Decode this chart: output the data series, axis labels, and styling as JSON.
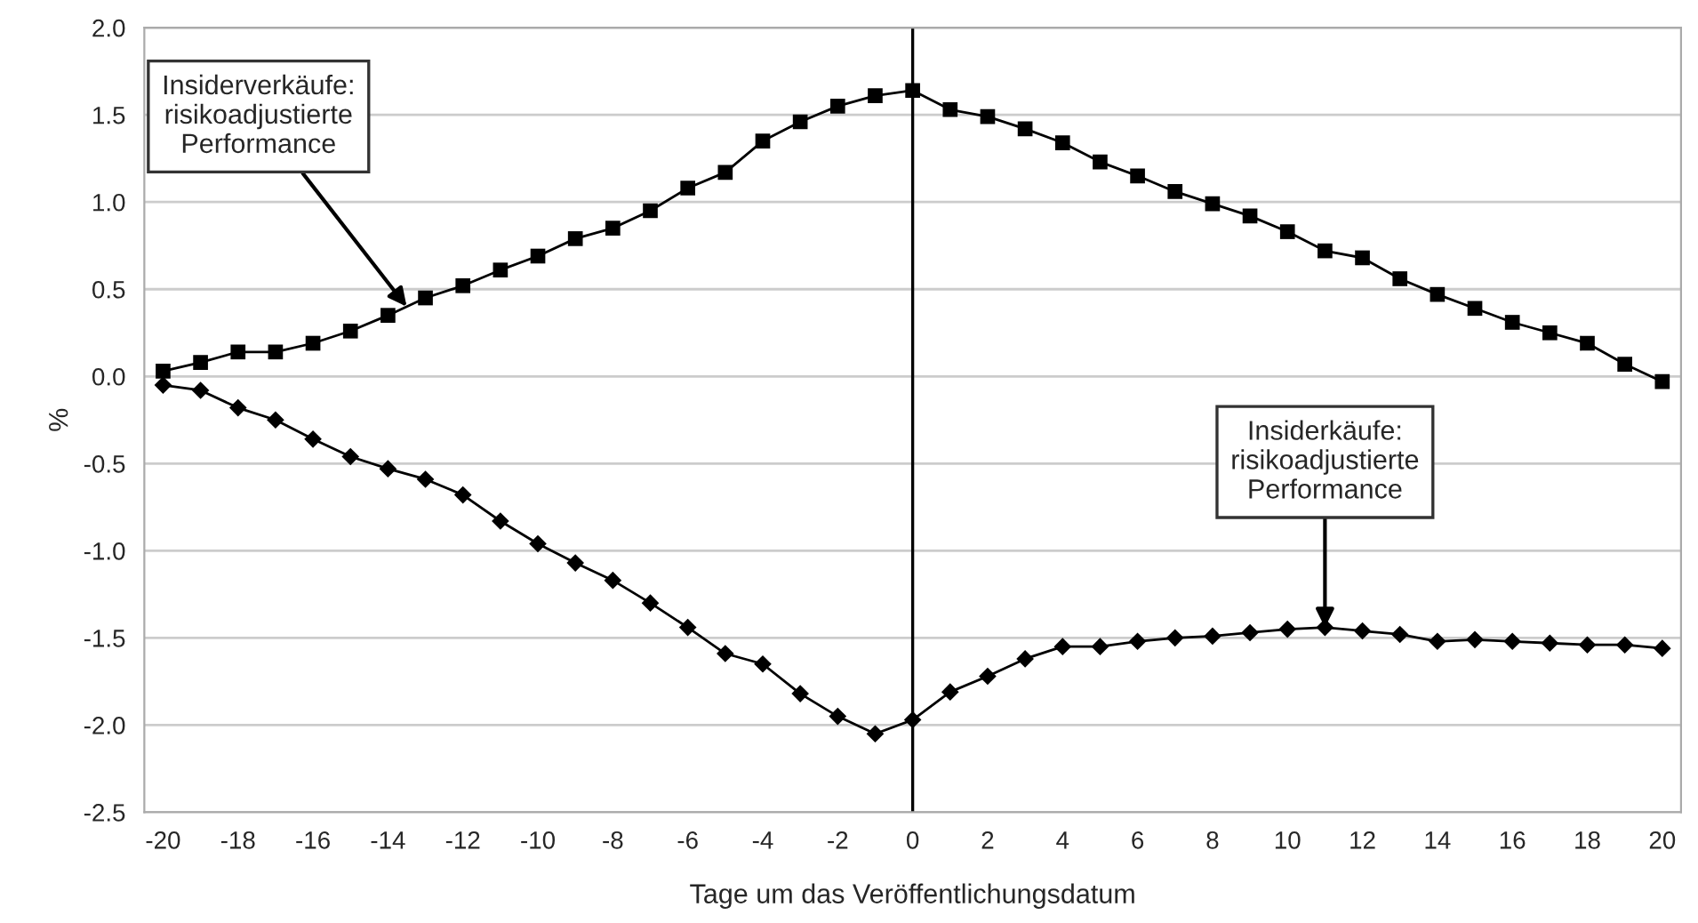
{
  "chart_data": {
    "type": "line",
    "xlabel": "Tage um das Veröffentlichungsdatum",
    "ylabel": "%",
    "x": [
      -20,
      -19,
      -18,
      -17,
      -16,
      -15,
      -14,
      -13,
      -12,
      -11,
      -10,
      -9,
      -8,
      -7,
      -6,
      -5,
      -4,
      -3,
      -2,
      -1,
      0,
      1,
      2,
      3,
      4,
      5,
      6,
      7,
      8,
      9,
      10,
      11,
      12,
      13,
      14,
      15,
      16,
      17,
      18,
      19,
      20
    ],
    "series": [
      {
        "color": "#000000",
        "marker": "square",
        "values": [
          0.03,
          0.08,
          0.14,
          0.14,
          0.19,
          0.26,
          0.35,
          0.45,
          0.52,
          0.61,
          0.69,
          0.79,
          0.85,
          0.95,
          1.08,
          1.17,
          1.35,
          1.46,
          1.55,
          1.61,
          1.64,
          1.53,
          1.49,
          1.42,
          1.34,
          1.23,
          1.15,
          1.06,
          0.99,
          0.92,
          0.83,
          0.72,
          0.68,
          0.56,
          0.47,
          0.39,
          0.31,
          0.25,
          0.19,
          0.07,
          -0.03
        ]
      },
      {
        "color": "#000000",
        "marker": "diamond",
        "values": [
          -0.05,
          -0.08,
          -0.18,
          -0.25,
          -0.36,
          -0.46,
          -0.53,
          -0.59,
          -0.68,
          -0.83,
          -0.96,
          -1.07,
          -1.17,
          -1.3,
          -1.44,
          -1.59,
          -1.65,
          -1.82,
          -1.95,
          -2.05,
          -1.97,
          -1.81,
          -1.72,
          -1.62,
          -1.55,
          -1.55,
          -1.52,
          -1.5,
          -1.49,
          -1.47,
          -1.45,
          -1.44,
          -1.46,
          -1.48,
          -1.52,
          -1.51,
          -1.52,
          -1.53,
          -1.54,
          -1.54,
          -1.56
        ]
      }
    ],
    "annotations": [
      {
        "text": "Insiderverkäufe:\nrisikoadjustierte\nPerformance",
        "x": -13.5,
        "y": 0.4
      },
      {
        "text": "Insiderkäufe:\nrisikoadjustierte\nPerformance",
        "x": 11,
        "y": -1.44
      }
    ],
    "ref_lines": [
      {
        "axis": "x",
        "value": 0,
        "color": "#000000"
      }
    ],
    "xlim": [
      -20.5,
      20.5
    ],
    "xticks": [
      -20,
      -18,
      -16,
      -14,
      -12,
      -10,
      -8,
      -6,
      -4,
      -2,
      0,
      2,
      4,
      6,
      8,
      10,
      12,
      14,
      16,
      18,
      20
    ],
    "ylim": [
      -2.5,
      2.0
    ],
    "yticks": [
      {
        "value": -2.5,
        "label": "-2.5"
      },
      {
        "value": -2.0,
        "label": "-2.0"
      },
      {
        "value": -1.5,
        "label": "-1.5"
      },
      {
        "value": -1.0,
        "label": "-1.0"
      },
      {
        "value": -0.5,
        "label": "-0.5"
      },
      {
        "value": 0.0,
        "label": "0.0"
      },
      {
        "value": 0.5,
        "label": "0.5"
      },
      {
        "value": 1.0,
        "label": "1.0"
      },
      {
        "value": 1.5,
        "label": "1.5"
      },
      {
        "value": 2.0,
        "label": "2.0"
      }
    ],
    "grid": "y",
    "line_style": "solid",
    "legend": false
  }
}
